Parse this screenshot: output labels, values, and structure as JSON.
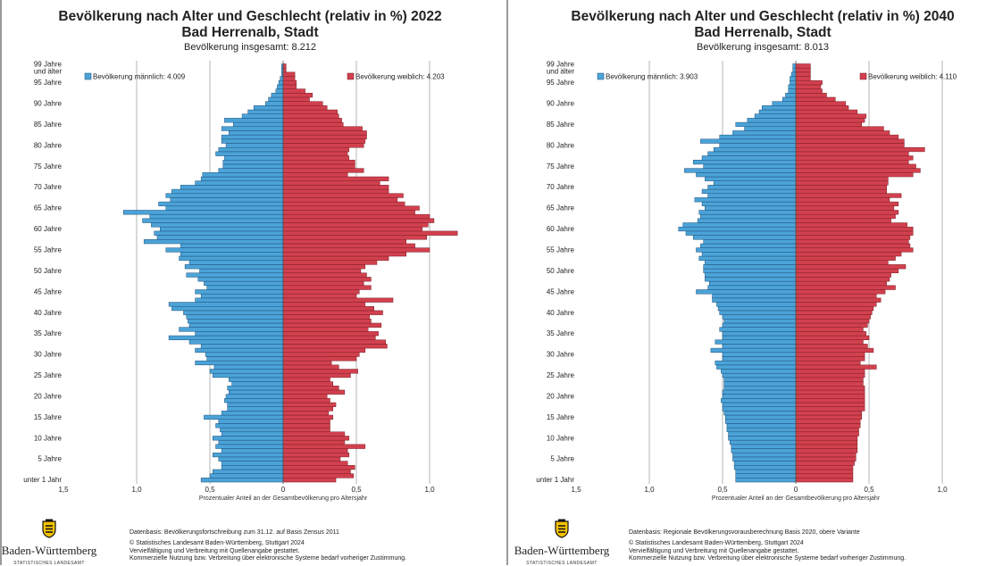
{
  "chart_data": [
    {
      "type": "bar",
      "title": "Bevölkerung nach Alter und Geschlecht (relativ in %) 2022",
      "subtitle": "Bad Herrenalb, Stadt",
      "total_label": "Bevölkerung insgesamt: 8.212",
      "xlabel": "Prozentualer Anteil an der Gesamtbevölkerung pro Altersjahr",
      "xlim": [
        -1.5,
        1.5
      ],
      "x_ticks": [
        "1,5",
        "1,0",
        "0,5",
        "0",
        "0,5",
        "1,0"
      ],
      "y_ticks": [
        "unter 1 Jahr",
        "5 Jahre",
        "10 Jahre",
        "15 Jahre",
        "20 Jahre",
        "25 Jahre",
        "30 Jahre",
        "35 Jahre",
        "40 Jahre",
        "45 Jahre",
        "50 Jahre",
        "55 Jahre",
        "60 Jahre",
        "65 Jahre",
        "70 Jahre",
        "75 Jahre",
        "80 Jahre",
        "85 Jahre",
        "90 Jahre",
        "95 Jahre",
        "99 Jahre",
        "und älter"
      ],
      "legend": {
        "male": "Bevölkerung männlich: 4.009",
        "female": "Bevölkerung weiblich: 4.203"
      },
      "categories": "Altersjahre 0 bis 99 und älter",
      "series": [
        {
          "name": "Bevölkerung männlich: 4.009",
          "color": "#4ba3d8",
          "values": [
            0.56,
            0.5,
            0.48,
            0.42,
            0.42,
            0.44,
            0.48,
            0.42,
            0.46,
            0.44,
            0.48,
            0.42,
            0.43,
            0.46,
            0.44,
            0.54,
            0.42,
            0.38,
            0.38,
            0.4,
            0.39,
            0.37,
            0.38,
            0.35,
            0.37,
            0.48,
            0.5,
            0.47,
            0.6,
            0.52,
            0.53,
            0.6,
            0.56,
            0.64,
            0.78,
            0.6,
            0.71,
            0.64,
            0.65,
            0.66,
            0.68,
            0.76,
            0.78,
            0.6,
            0.56,
            0.6,
            0.52,
            0.54,
            0.58,
            0.66,
            0.57,
            0.67,
            0.64,
            0.71,
            0.7,
            0.8,
            0.7,
            0.95,
            0.86,
            0.88,
            0.84,
            0.9,
            0.96,
            0.91,
            1.09,
            0.8,
            0.85,
            0.77,
            0.8,
            0.76,
            0.7,
            0.6,
            0.56,
            0.55,
            0.44,
            0.41,
            0.41,
            0.4,
            0.46,
            0.44,
            0.39,
            0.42,
            0.42,
            0.37,
            0.42,
            0.34,
            0.4,
            0.28,
            0.24,
            0.2,
            0.12,
            0.1,
            0.08,
            0.05,
            0.04,
            0.03,
            0.02,
            0.01,
            0.01,
            0.01
          ]
        },
        {
          "name": "Bevölkerung weiblich: 4.203",
          "color": "#d2404e",
          "values": [
            0.36,
            0.48,
            0.46,
            0.49,
            0.44,
            0.39,
            0.45,
            0.44,
            0.56,
            0.42,
            0.45,
            0.42,
            0.32,
            0.32,
            0.32,
            0.34,
            0.31,
            0.34,
            0.36,
            0.32,
            0.3,
            0.42,
            0.38,
            0.34,
            0.32,
            0.46,
            0.51,
            0.38,
            0.33,
            0.5,
            0.52,
            0.56,
            0.71,
            0.7,
            0.63,
            0.65,
            0.58,
            0.67,
            0.6,
            0.59,
            0.68,
            0.62,
            0.56,
            0.75,
            0.5,
            0.52,
            0.6,
            0.55,
            0.6,
            0.57,
            0.53,
            0.56,
            0.64,
            0.72,
            0.84,
            1.0,
            0.9,
            0.84,
            0.98,
            1.19,
            0.95,
            0.99,
            1.03,
            1.0,
            0.9,
            0.93,
            0.83,
            0.78,
            0.82,
            0.72,
            0.72,
            0.66,
            0.72,
            0.44,
            0.55,
            0.49,
            0.49,
            0.45,
            0.44,
            0.45,
            0.55,
            0.56,
            0.57,
            0.57,
            0.54,
            0.41,
            0.4,
            0.38,
            0.37,
            0.3,
            0.27,
            0.18,
            0.2,
            0.15,
            0.09,
            0.09,
            0.08,
            0.08,
            0.02,
            0.02
          ]
        }
      ]
    },
    {
      "type": "bar",
      "title": "Bevölkerung nach Alter und Geschlecht (relativ in %) 2040",
      "subtitle": "Bad Herrenalb, Stadt",
      "total_label": "Bevölkerung insgesamt: 8.013",
      "xlabel": "Prozentualer Anteil an der Gesamtbevölkerung pro Altersjahr",
      "xlim": [
        -1.5,
        1.5
      ],
      "x_ticks": [
        "1,5",
        "1,0",
        "0,5",
        "0",
        "0,5",
        "1,0"
      ],
      "y_ticks": [
        "unter 1 Jahr",
        "5 Jahre",
        "10 Jahre",
        "15 Jahre",
        "20 Jahre",
        "25 Jahre",
        "30 Jahre",
        "35 Jahre",
        "40 Jahre",
        "45 Jahre",
        "50 Jahre",
        "55 Jahre",
        "60 Jahre",
        "65 Jahre",
        "70 Jahre",
        "75 Jahre",
        "80 Jahre",
        "85 Jahre",
        "90 Jahre",
        "95 Jahre",
        "99 Jahre",
        "und älter"
      ],
      "legend": {
        "male": "Bevölkerung männlich: 3.903",
        "female": "Bevölkerung weiblich: 4.110"
      },
      "categories": "Altersjahre 0 bis 99 und älter",
      "series": [
        {
          "name": "Bevölkerung männlich: 3.903",
          "color": "#4ba3d8",
          "values": [
            0.41,
            0.41,
            0.41,
            0.42,
            0.42,
            0.43,
            0.43,
            0.44,
            0.44,
            0.45,
            0.46,
            0.46,
            0.47,
            0.47,
            0.48,
            0.48,
            0.49,
            0.5,
            0.5,
            0.51,
            0.5,
            0.5,
            0.49,
            0.49,
            0.49,
            0.5,
            0.51,
            0.54,
            0.55,
            0.5,
            0.5,
            0.58,
            0.5,
            0.55,
            0.5,
            0.5,
            0.52,
            0.5,
            0.49,
            0.5,
            0.52,
            0.53,
            0.54,
            0.57,
            0.57,
            0.68,
            0.6,
            0.59,
            0.62,
            0.62,
            0.63,
            0.63,
            0.62,
            0.66,
            0.64,
            0.68,
            0.65,
            0.63,
            0.7,
            0.75,
            0.8,
            0.77,
            0.67,
            0.65,
            0.66,
            0.62,
            0.64,
            0.69,
            0.6,
            0.64,
            0.6,
            0.56,
            0.62,
            0.68,
            0.76,
            0.63,
            0.7,
            0.64,
            0.6,
            0.56,
            0.52,
            0.65,
            0.52,
            0.43,
            0.35,
            0.41,
            0.33,
            0.28,
            0.25,
            0.23,
            0.16,
            0.09,
            0.07,
            0.05,
            0.05,
            0.04,
            0.04,
            0.03,
            0.02,
            0.02
          ]
        },
        {
          "name": "Bevölkerung weiblich: 4.110",
          "color": "#d2404e",
          "values": [
            0.39,
            0.39,
            0.39,
            0.39,
            0.4,
            0.41,
            0.41,
            0.42,
            0.42,
            0.42,
            0.42,
            0.43,
            0.43,
            0.44,
            0.44,
            0.45,
            0.45,
            0.47,
            0.47,
            0.47,
            0.47,
            0.47,
            0.47,
            0.46,
            0.46,
            0.47,
            0.47,
            0.55,
            0.44,
            0.47,
            0.47,
            0.53,
            0.49,
            0.46,
            0.5,
            0.48,
            0.46,
            0.49,
            0.5,
            0.51,
            0.52,
            0.53,
            0.55,
            0.58,
            0.55,
            0.61,
            0.68,
            0.62,
            0.64,
            0.65,
            0.7,
            0.75,
            0.63,
            0.68,
            0.72,
            0.8,
            0.78,
            0.77,
            0.78,
            0.8,
            0.8,
            0.76,
            0.65,
            0.68,
            0.7,
            0.67,
            0.7,
            0.64,
            0.72,
            0.62,
            0.62,
            0.63,
            0.63,
            0.8,
            0.85,
            0.82,
            0.77,
            0.8,
            0.77,
            0.88,
            0.74,
            0.74,
            0.7,
            0.64,
            0.6,
            0.45,
            0.47,
            0.48,
            0.42,
            0.36,
            0.34,
            0.27,
            0.21,
            0.18,
            0.17,
            0.18,
            0.1,
            0.1,
            0.1,
            0.1
          ]
        }
      ]
    }
  ],
  "footers": [
    {
      "logo_name": "Baden-Württemberg",
      "logo_sub": "STATISTISCHES LANDESAMT",
      "datenbasis": "Datenbasis: Bevölkerungsfortschreibung zum 31.12. auf Basis Zensus 2011",
      "copyright": "© Statistisches Landesamt Baden-Württemberg, Stuttgart 2024",
      "line2": "Vervielfältigung und Verbreitung mit Quellenangabe gestattet.",
      "line3": "Kommerzielle Nutzung bzw. Verbreitung über elektronische Systeme bedarf vorheriger Zustimmung."
    },
    {
      "logo_name": "Baden-Württemberg",
      "logo_sub": "STATISTISCHES LANDESAMT",
      "datenbasis": "Datenbasis: Regionale Bevölkerungsvorausberechnung Basis 2020, obere Variante",
      "copyright": "© Statistisches Landesamt Baden-Württemberg, Stuttgart 2024",
      "line2": "Vervielfältigung und Verbreitung mit Quellenangabe gestattet.",
      "line3": "Kommerzielle Nutzung bzw. Verbreitung über elektronische Systeme bedarf vorheriger Zustimmung."
    }
  ]
}
